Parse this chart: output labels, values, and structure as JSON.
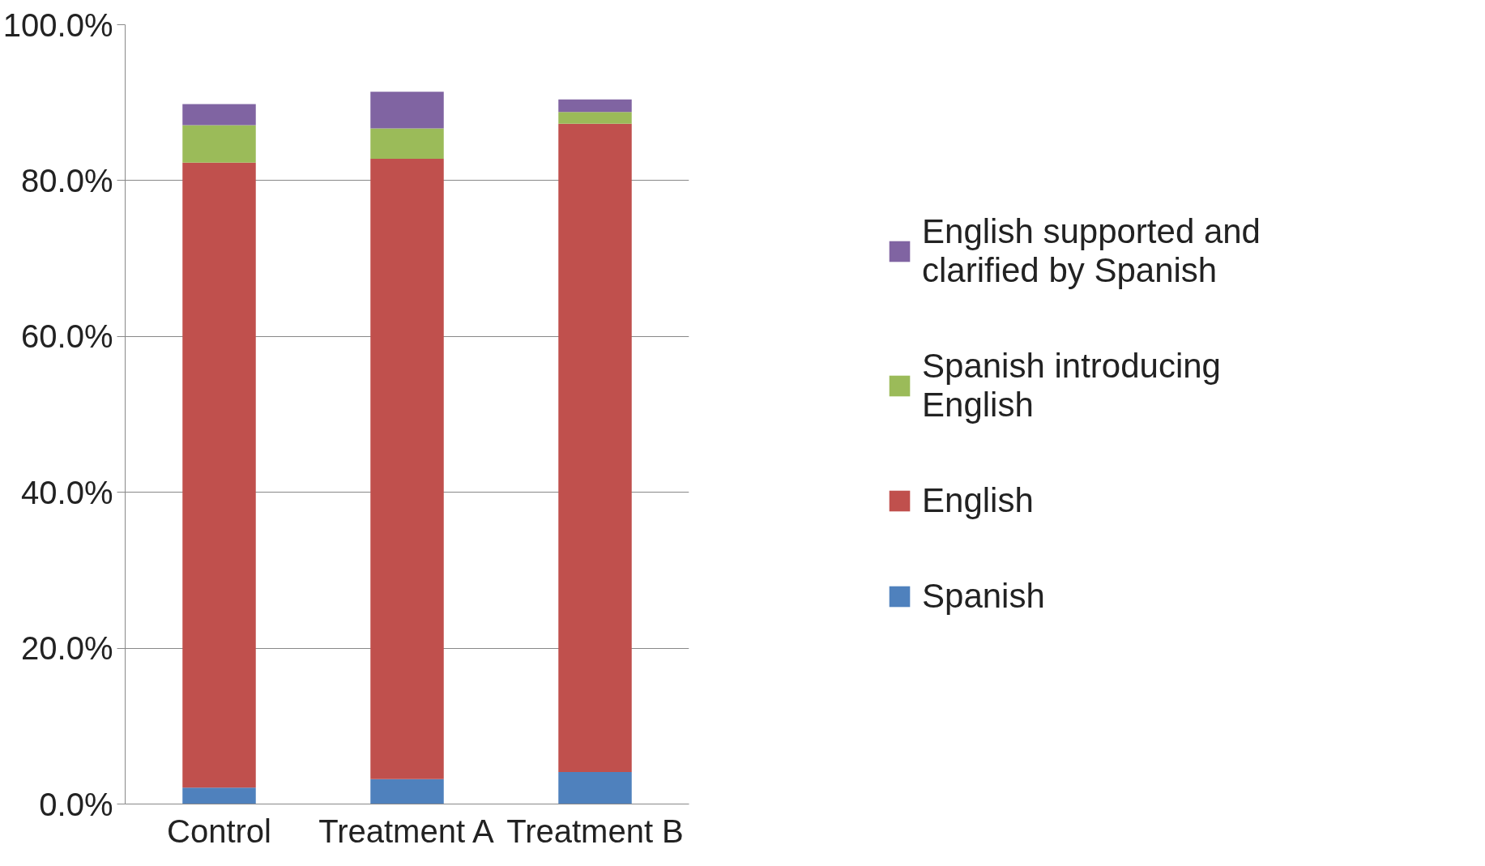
{
  "chart_data": {
    "type": "bar",
    "stacked": true,
    "categories": [
      "Control",
      "Treatment A",
      "Treatment B"
    ],
    "series": [
      {
        "name": "Spanish",
        "color": "#4f81bd",
        "values": [
          2.1,
          3.2,
          4.1
        ]
      },
      {
        "name": "English",
        "color": "#c0504d",
        "values": [
          80.2,
          79.6,
          83.2
        ]
      },
      {
        "name": "Spanish introducing English",
        "color": "#9bbb59",
        "values": [
          4.8,
          3.9,
          1.5
        ]
      },
      {
        "name": "English supported and clarified by Spanish",
        "color": "#8064a2",
        "values": [
          2.7,
          4.7,
          1.6
        ]
      }
    ],
    "ylim": [
      0,
      100
    ],
    "yticks": [
      {
        "value": 0,
        "label": "0.0%"
      },
      {
        "value": 20,
        "label": "20.0%"
      },
      {
        "value": 40,
        "label": "40.0%"
      },
      {
        "value": 60,
        "label": "60.0%"
      },
      {
        "value": 80,
        "label": "80.0%"
      },
      {
        "value": 100,
        "label": "100.0%"
      }
    ],
    "grid": "y",
    "legend": "right"
  }
}
